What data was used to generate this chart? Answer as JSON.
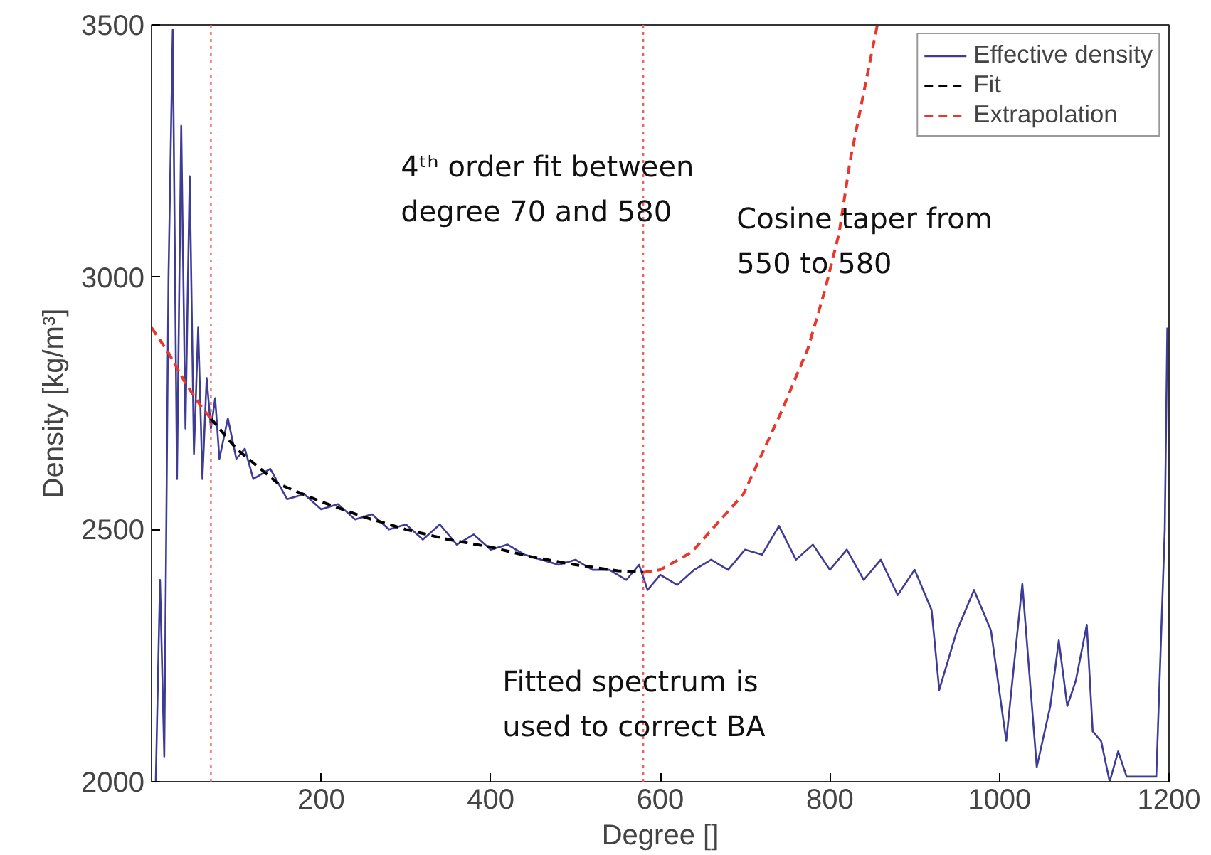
{
  "chart_data": {
    "type": "line",
    "xlabel": "Degree []",
    "ylabel": "Density [kg/m³]",
    "xlim": [
      0,
      1200
    ],
    "ylim": [
      2000,
      3500
    ],
    "xticks": [
      200,
      400,
      600,
      800,
      1000,
      1200
    ],
    "yticks": [
      2000,
      2500,
      3000,
      3500
    ],
    "grid": false,
    "legend": "top right",
    "series": [
      {
        "name": "Effective density",
        "color": "#3f3c96",
        "line_style": "solid",
        "x": [
          5,
          10,
          15,
          20,
          25,
          30,
          35,
          40,
          45,
          50,
          55,
          60,
          65,
          70,
          75,
          80,
          90,
          100,
          110,
          120,
          140,
          160,
          180,
          200,
          220,
          240,
          260,
          280,
          300,
          320,
          340,
          360,
          380,
          400,
          420,
          440,
          460,
          480,
          500,
          520,
          540,
          560,
          575,
          585,
          600,
          620,
          640,
          660,
          680,
          700,
          720,
          740,
          760,
          780,
          800,
          820,
          840,
          860,
          880,
          900,
          920,
          929,
          950,
          970,
          990,
          1008,
          1027,
          1044,
          1060,
          1070,
          1080,
          1090,
          1103,
          1110,
          1120,
          1130,
          1140,
          1150,
          1185,
          1195,
          1198
        ],
        "values": [
          2000,
          2400,
          2050,
          3000,
          3490,
          2600,
          3300,
          2700,
          3200,
          2650,
          2900,
          2600,
          2800,
          2700,
          2760,
          2640,
          2720,
          2640,
          2660,
          2600,
          2620,
          2560,
          2570,
          2540,
          2550,
          2520,
          2530,
          2500,
          2510,
          2480,
          2510,
          2470,
          2490,
          2460,
          2470,
          2450,
          2440,
          2430,
          2440,
          2420,
          2420,
          2400,
          2430,
          2380,
          2410,
          2390,
          2420,
          2440,
          2420,
          2460,
          2450,
          2507,
          2440,
          2470,
          2420,
          2460,
          2400,
          2440,
          2370,
          2420,
          2340,
          2182,
          2300,
          2380,
          2300,
          2081,
          2392,
          2029,
          2150,
          2280,
          2150,
          2200,
          2311,
          2100,
          2080,
          2000,
          2060,
          2010,
          2010,
          2500,
          2900
        ]
      },
      {
        "name": "Fit",
        "color": "#000000",
        "line_style": "dashed",
        "x": [
          70,
          100,
          150,
          200,
          250,
          300,
          350,
          400,
          450,
          500,
          550,
          580
        ],
        "values": [
          2720,
          2660,
          2590,
          2555,
          2525,
          2500,
          2480,
          2465,
          2445,
          2430,
          2418,
          2415
        ]
      },
      {
        "name": "Extrapolation",
        "color": "#e8372c",
        "line_style": "dashed",
        "x": [
          0,
          20,
          40,
          60,
          70,
          75,
          580,
          600,
          637,
          698,
          743,
          774,
          794,
          811,
          824,
          856
        ],
        "values": [
          2900,
          2850,
          2790,
          2740,
          2720,
          null,
          2415,
          2420,
          2455,
          2570,
          2734,
          2858,
          2973,
          3088,
          3232,
          3500
        ]
      }
    ],
    "ref_lines": [
      {
        "axis": "x",
        "value": 70,
        "color": "#f06060",
        "line_style": "dotted"
      },
      {
        "axis": "x",
        "value": 580,
        "color": "#f06060",
        "line_style": "dotted"
      }
    ],
    "annotations": [
      "4ᵗʰ order fit between\ndegree 70 and 580",
      "Cosine taper from\n550 to 580",
      "Fitted spectrum is\nused to correct BA"
    ]
  }
}
